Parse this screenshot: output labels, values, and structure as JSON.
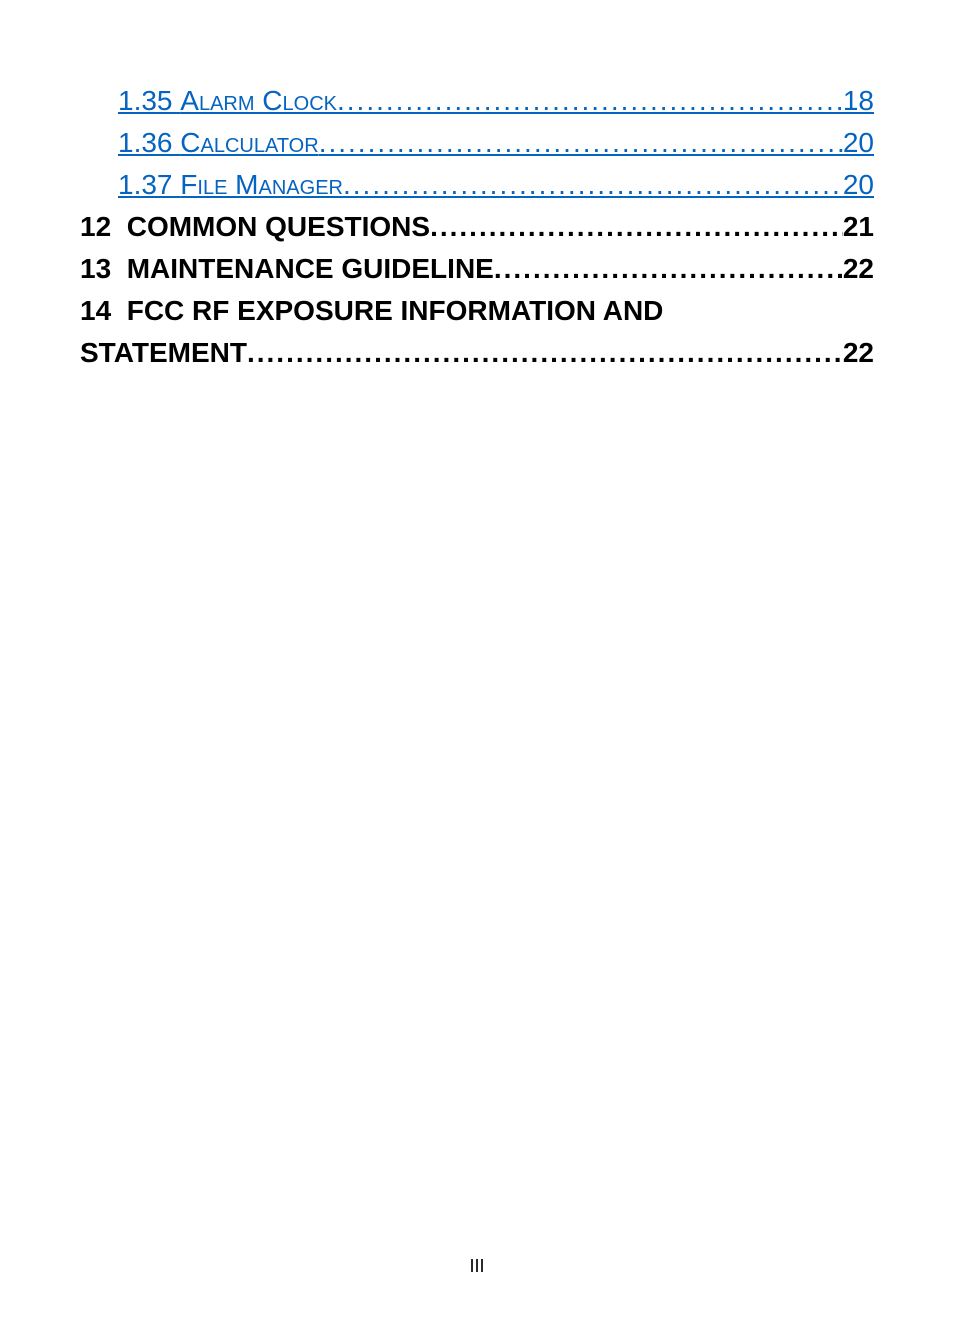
{
  "toc": {
    "entries": [
      {
        "number": "1.35",
        "title": "Alarm Clock",
        "page": "18",
        "type": "link",
        "indented": true,
        "smallcaps": true
      },
      {
        "number": "1.36",
        "title": "Calculator",
        "page": "20",
        "type": "link",
        "indented": true,
        "smallcaps": true
      },
      {
        "number": "1.37",
        "title": "File Manager",
        "page": "20",
        "type": "link",
        "indented": true,
        "smallcaps": true
      },
      {
        "number": "12",
        "title": "COMMON QUESTIONS",
        "page": "21",
        "type": "bold",
        "indented": false,
        "smallcaps": false
      },
      {
        "number": "13",
        "title": "MAINTENANCE GUIDELINE",
        "page": "22",
        "type": "bold",
        "indented": false,
        "smallcaps": false
      },
      {
        "number": "14",
        "title_line1": "FCC RF EXPOSURE INFORMATION AND",
        "title_line2": "STATEMENT",
        "page": "22",
        "type": "bold-wrap",
        "indented": false,
        "smallcaps": false
      }
    ]
  },
  "footer": {
    "page_number": "III"
  },
  "colors": {
    "link_color": "#0563c1",
    "text_color": "#000000",
    "background": "#ffffff"
  },
  "typography": {
    "body_fontsize": 28,
    "footer_fontsize": 18,
    "font_family": "Arial"
  },
  "dots_fill": "..........................................................................................."
}
